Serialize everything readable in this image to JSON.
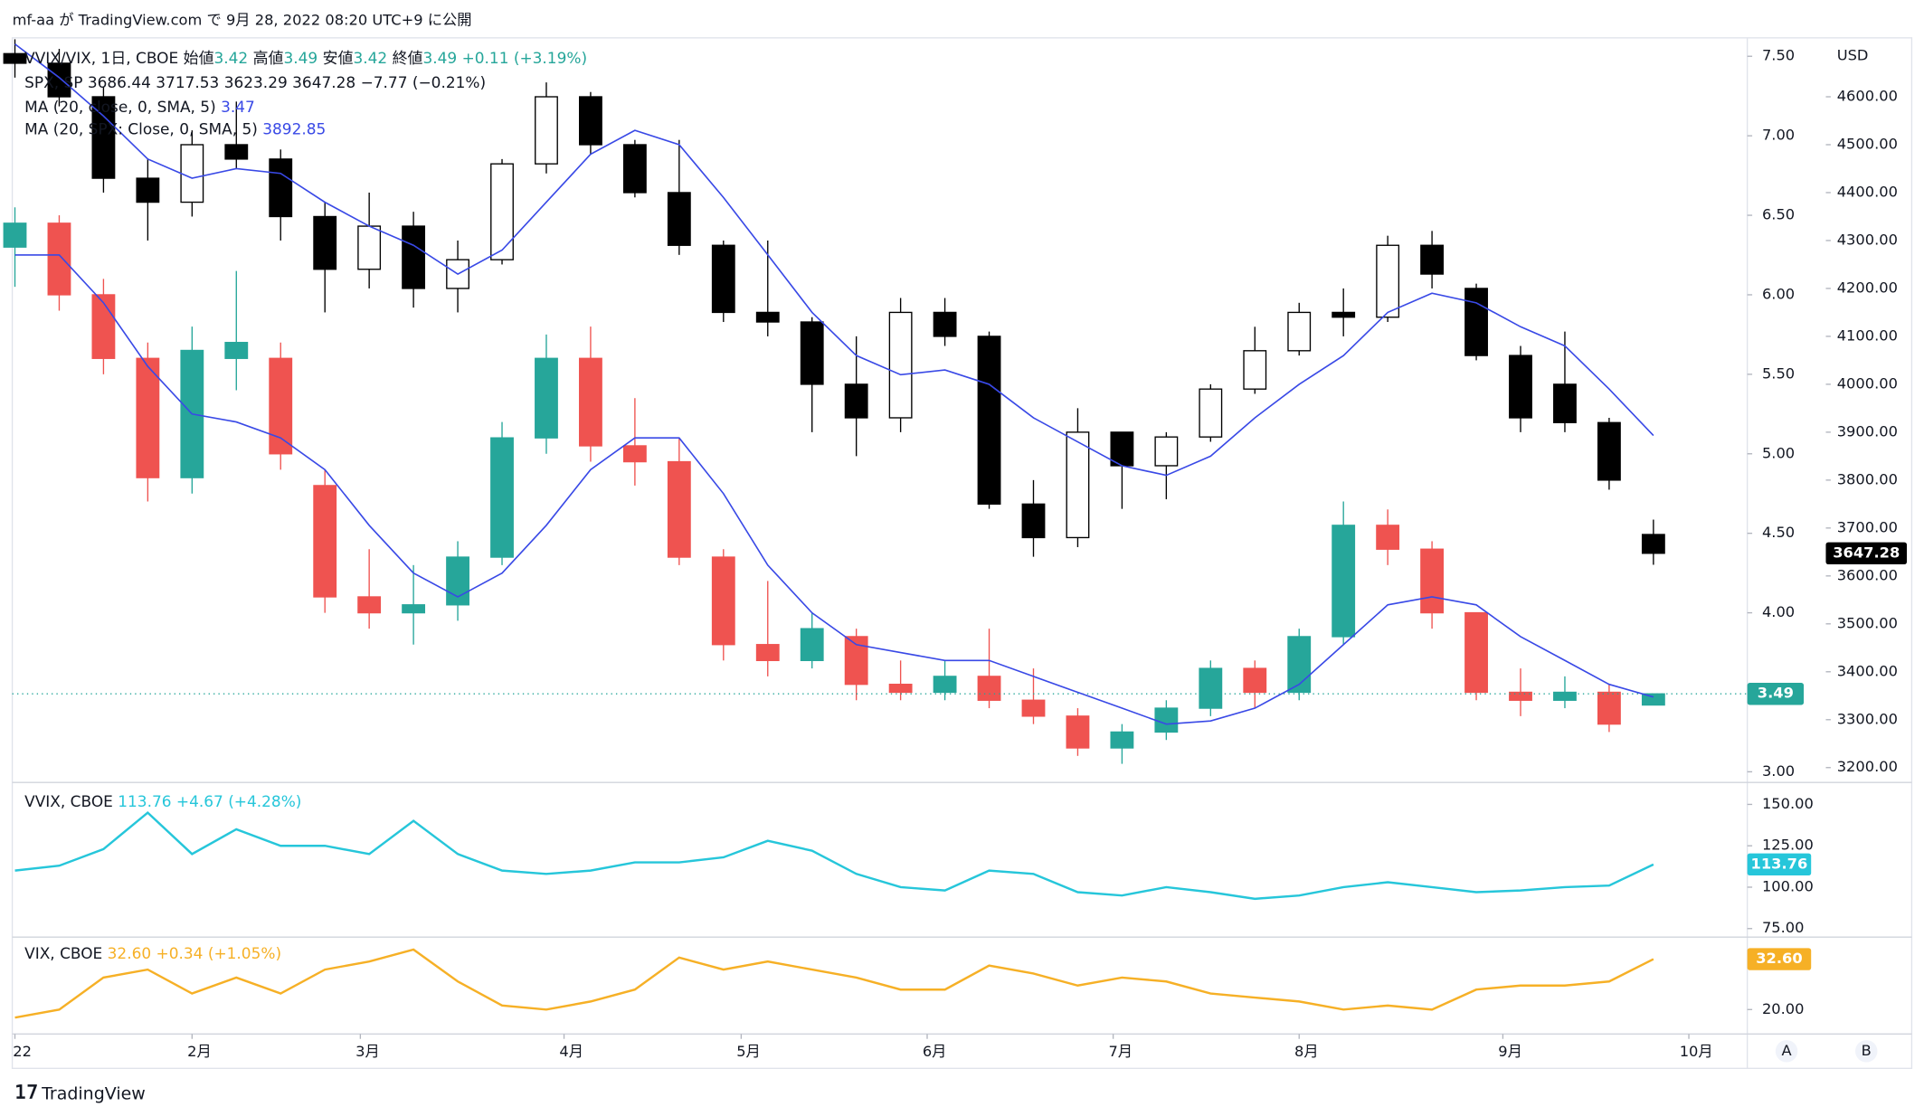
{
  "header": "mf-aa が TradingView.com で 9月 28, 2022 08:20 UTC+9 に公開",
  "footer": "TradingView",
  "buttons": [
    "A",
    "B"
  ],
  "chart_data": [
    {
      "type": "candlestick",
      "ohlc_labels": [
        "始値",
        "高値",
        "安値",
        "終値"
      ],
      "x": [
        0,
        5,
        10,
        15,
        20,
        25,
        30,
        35,
        40,
        45,
        50,
        55,
        60,
        65,
        70,
        75,
        80,
        85,
        90,
        95,
        100,
        105,
        110,
        115,
        120,
        125,
        130,
        135,
        140,
        145,
        150,
        155,
        160,
        165,
        170,
        175,
        180,
        185
      ],
      "xlim": [
        -0.3,
        195.6
      ],
      "ylim": [
        2.948,
        7.616
      ],
      "yticks": [
        {
          "value": 7.5,
          "label": "7.50"
        },
        {
          "value": 7,
          "label": "7.00"
        },
        {
          "value": 6.5,
          "label": "6.50"
        },
        {
          "value": 6,
          "label": "6.00"
        },
        {
          "value": 5.5,
          "label": "5.50"
        },
        {
          "value": 5,
          "label": "5.00"
        },
        {
          "value": 4.5,
          "label": "4.50"
        },
        {
          "value": 4,
          "label": "4.00"
        },
        {
          "value": 3,
          "label": "3.00"
        }
      ],
      "y2label": "USD",
      "y2lim": [
        3174,
        4723
      ],
      "y2ticks": [
        {
          "value": 4600,
          "label": "4600.00"
        },
        {
          "value": 4500,
          "label": "4500.00"
        },
        {
          "value": 4400,
          "label": "4400.00"
        },
        {
          "value": 4300,
          "label": "4300.00"
        },
        {
          "value": 4200,
          "label": "4200.00"
        },
        {
          "value": 4100,
          "label": "4100.00"
        },
        {
          "value": 4000,
          "label": "4000.00"
        },
        {
          "value": 3900,
          "label": "3900.00"
        },
        {
          "value": 3800,
          "label": "3800.00"
        },
        {
          "value": 3700,
          "label": "3700.00"
        },
        {
          "value": 3600,
          "label": "3600.00"
        },
        {
          "value": 3500,
          "label": "3500.00"
        },
        {
          "value": 3400,
          "label": "3400.00"
        },
        {
          "value": 3300,
          "label": "3300.00"
        },
        {
          "value": 3200,
          "label": "3200.00"
        }
      ],
      "series": [
        {
          "name": "VVIX/VIX, 1日, CBOE",
          "type": "candlestick",
          "up_color": "#26a69a",
          "down_color": "#ef5350",
          "badge_color": "#26a69a",
          "change": "+0.11 (+3.19%)",
          "open": [
            6.3,
            6.45,
            6.0,
            5.6,
            4.85,
            5.6,
            5.6,
            4.8,
            4.1,
            4.0,
            4.05,
            4.35,
            5.1,
            5.6,
            5.05,
            4.95,
            4.35,
            3.8,
            3.7,
            3.85,
            3.55,
            3.5,
            3.6,
            3.45,
            3.35,
            3.15,
            3.25,
            3.4,
            3.65,
            3.5,
            3.85,
            4.55,
            4.4,
            4.0,
            3.5,
            3.45,
            3.5,
            3.42
          ],
          "high": [
            6.55,
            6.5,
            6.1,
            5.7,
            5.8,
            6.15,
            5.7,
            4.9,
            4.4,
            4.3,
            4.45,
            5.2,
            5.75,
            5.8,
            5.35,
            5.1,
            4.4,
            4.2,
            4.0,
            3.9,
            3.7,
            3.7,
            3.9,
            3.65,
            3.4,
            3.3,
            3.45,
            3.7,
            3.7,
            3.9,
            4.7,
            4.65,
            4.45,
            4.0,
            3.65,
            3.6,
            3.55,
            3.49
          ],
          "low": [
            6.05,
            5.9,
            5.5,
            4.7,
            4.75,
            5.4,
            4.9,
            4.0,
            3.9,
            3.8,
            3.95,
            4.3,
            5.0,
            4.95,
            4.8,
            4.3,
            3.7,
            3.6,
            3.65,
            3.45,
            3.45,
            3.45,
            3.4,
            3.3,
            3.1,
            3.05,
            3.2,
            3.35,
            3.4,
            3.45,
            3.8,
            4.3,
            3.9,
            3.45,
            3.35,
            3.4,
            3.25,
            3.42
          ],
          "close": [
            6.45,
            6.0,
            5.6,
            4.85,
            5.65,
            5.7,
            5.0,
            4.1,
            4.0,
            4.05,
            4.35,
            5.1,
            5.6,
            5.05,
            4.95,
            4.35,
            3.8,
            3.7,
            3.9,
            3.55,
            3.5,
            3.6,
            3.45,
            3.35,
            3.15,
            3.25,
            3.4,
            3.65,
            3.5,
            3.85,
            4.55,
            4.4,
            4.0,
            3.5,
            3.45,
            3.5,
            3.3,
            3.49
          ]
        },
        {
          "name": "SPX, SP",
          "type": "candlestick",
          "axis": "y2",
          "up_color": "#ffffff",
          "down_color": "#000000",
          "border_color": "#000000",
          "badge_color": "#000000",
          "change": "−7.77 (−0.21%)",
          "open": [
            4690,
            4670,
            4600,
            4430,
            4380,
            4500,
            4470,
            4350,
            4240,
            4330,
            4200,
            4260,
            4460,
            4600,
            4500,
            4400,
            4290,
            4150,
            4130,
            4000,
            3930,
            4150,
            4100,
            3750,
            3680,
            3900,
            3830,
            3890,
            3990,
            4070,
            4150,
            4140,
            4290,
            4200,
            4060,
            4000,
            3920,
            3686.44
          ],
          "high": [
            4720,
            4700,
            4620,
            4470,
            4530,
            4590,
            4490,
            4380,
            4400,
            4360,
            4300,
            4470,
            4630,
            4610,
            4510,
            4510,
            4300,
            4300,
            4140,
            4100,
            4180,
            4180,
            4110,
            3800,
            3950,
            3900,
            3900,
            4000,
            4120,
            4170,
            4200,
            4310,
            4320,
            4210,
            4080,
            4110,
            3930,
            3717.53
          ],
          "low": [
            4640,
            4580,
            4400,
            4300,
            4350,
            4450,
            4300,
            4150,
            4200,
            4160,
            4150,
            4250,
            4440,
            4480,
            4390,
            4270,
            4130,
            4100,
            3900,
            3850,
            3900,
            4080,
            3740,
            3640,
            3660,
            3740,
            3760,
            3880,
            3980,
            4060,
            4100,
            4130,
            4200,
            4050,
            3900,
            3900,
            3780,
            3623.29
          ],
          "close": [
            4670,
            4600,
            4430,
            4380,
            4500,
            4470,
            4350,
            4240,
            4330,
            4200,
            4260,
            4460,
            4600,
            4500,
            4400,
            4290,
            4150,
            4130,
            4000,
            3930,
            4150,
            4100,
            3750,
            3680,
            3900,
            3830,
            3890,
            3990,
            4070,
            4150,
            4140,
            4290,
            4230,
            4060,
            3930,
            3920,
            3800,
            3647.28
          ]
        },
        {
          "name": "MA (20, close, 0, SMA, 5)",
          "type": "line",
          "color": "#3949e6",
          "values": [
            6.25,
            6.25,
            5.95,
            5.55,
            5.25,
            5.2,
            5.1,
            4.9,
            4.55,
            4.25,
            4.1,
            4.25,
            4.55,
            4.9,
            5.1,
            5.1,
            4.75,
            4.3,
            4.0,
            3.8,
            3.75,
            3.7,
            3.7,
            3.6,
            3.5,
            3.4,
            3.3,
            3.32,
            3.4,
            3.55,
            3.8,
            4.05,
            4.1,
            4.05,
            3.85,
            3.7,
            3.55,
            3.47
          ]
        },
        {
          "name": "MA (20, SPX: Close, 0, SMA, 5)",
          "type": "line",
          "axis": "y2",
          "color": "#3949e6",
          "values": [
            4710,
            4640,
            4560,
            4470,
            4430,
            4450,
            4440,
            4380,
            4330,
            4290,
            4230,
            4280,
            4380,
            4480,
            4530,
            4500,
            4390,
            4270,
            4150,
            4060,
            4020,
            4030,
            4000,
            3930,
            3880,
            3830,
            3810,
            3850,
            3930,
            4000,
            4060,
            4150,
            4190,
            4170,
            4120,
            4080,
            3990,
            3892.85
          ]
        }
      ]
    },
    {
      "type": "line",
      "x": [
        0,
        5,
        10,
        15,
        20,
        25,
        30,
        35,
        40,
        45,
        50,
        55,
        60,
        65,
        70,
        75,
        80,
        85,
        90,
        95,
        100,
        105,
        110,
        115,
        120,
        125,
        130,
        135,
        140,
        145,
        150,
        155,
        160,
        165,
        170,
        175,
        180,
        185
      ],
      "xlim": [
        -0.3,
        195.6
      ],
      "ylim": [
        70.6,
        161
      ],
      "yticks": [
        {
          "value": 150,
          "label": "150.00"
        },
        {
          "value": 125,
          "label": "125.00"
        },
        {
          "value": 100,
          "label": "100.00"
        },
        {
          "value": 75,
          "label": "75.00"
        }
      ],
      "series": [
        {
          "name": "VVIX, CBOE",
          "color": "#26c6da",
          "change": "+4.67 (+4.28%)",
          "values": [
            110,
            113,
            123,
            145,
            120,
            135,
            125,
            125,
            120,
            140,
            120,
            110,
            108,
            110,
            115,
            115,
            118,
            128,
            122,
            108,
            100,
            98,
            110,
            108,
            97,
            95,
            100,
            97,
            93,
            95,
            100,
            103,
            100,
            97,
            98,
            100,
            101,
            113.76
          ]
        }
      ]
    },
    {
      "type": "line",
      "x": [
        0,
        5,
        10,
        15,
        20,
        25,
        30,
        35,
        40,
        45,
        50,
        55,
        60,
        65,
        70,
        75,
        80,
        85,
        90,
        95,
        100,
        105,
        110,
        115,
        120,
        125,
        130,
        135,
        140,
        145,
        150,
        155,
        160,
        165,
        170,
        175,
        180,
        185
      ],
      "xlim": [
        -0.3,
        195.6
      ],
      "ylim": [
        14.5,
        37.5
      ],
      "yticks": [
        {
          "value": 20,
          "label": "20.00"
        }
      ],
      "xticks": [
        {
          "value": 0,
          "label": "22"
        },
        {
          "value": 20,
          "label": "2月"
        },
        {
          "value": 39,
          "label": "3月"
        },
        {
          "value": 62,
          "label": "4月"
        },
        {
          "value": 82,
          "label": "5月"
        },
        {
          "value": 103,
          "label": "6月"
        },
        {
          "value": 124,
          "label": "7月"
        },
        {
          "value": 145,
          "label": "8月"
        },
        {
          "value": 168,
          "label": "9月"
        },
        {
          "value": 189,
          "label": "10月"
        }
      ],
      "series": [
        {
          "name": "VIX, CBOE",
          "color": "#f6b026",
          "change": "+0.34 (+1.05%)",
          "values": [
            18,
            20,
            28,
            30,
            24,
            28,
            24,
            30,
            32,
            35,
            27,
            21,
            20,
            22,
            25,
            33,
            30,
            32,
            30,
            28,
            25,
            25,
            31,
            29,
            26,
            28,
            27,
            24,
            23,
            22,
            20,
            21,
            20,
            25,
            26,
            26,
            27,
            32.6
          ],
          "value_labels": [
            null,
            null,
            null,
            null,
            null,
            null,
            null,
            null,
            null,
            null,
            null,
            null,
            null,
            null,
            null,
            null,
            null,
            null,
            null,
            null,
            null,
            null,
            null,
            null,
            null,
            null,
            null,
            null,
            null,
            null,
            null,
            null,
            null,
            null,
            null,
            null,
            null,
            "32.60"
          ]
        }
      ]
    }
  ]
}
